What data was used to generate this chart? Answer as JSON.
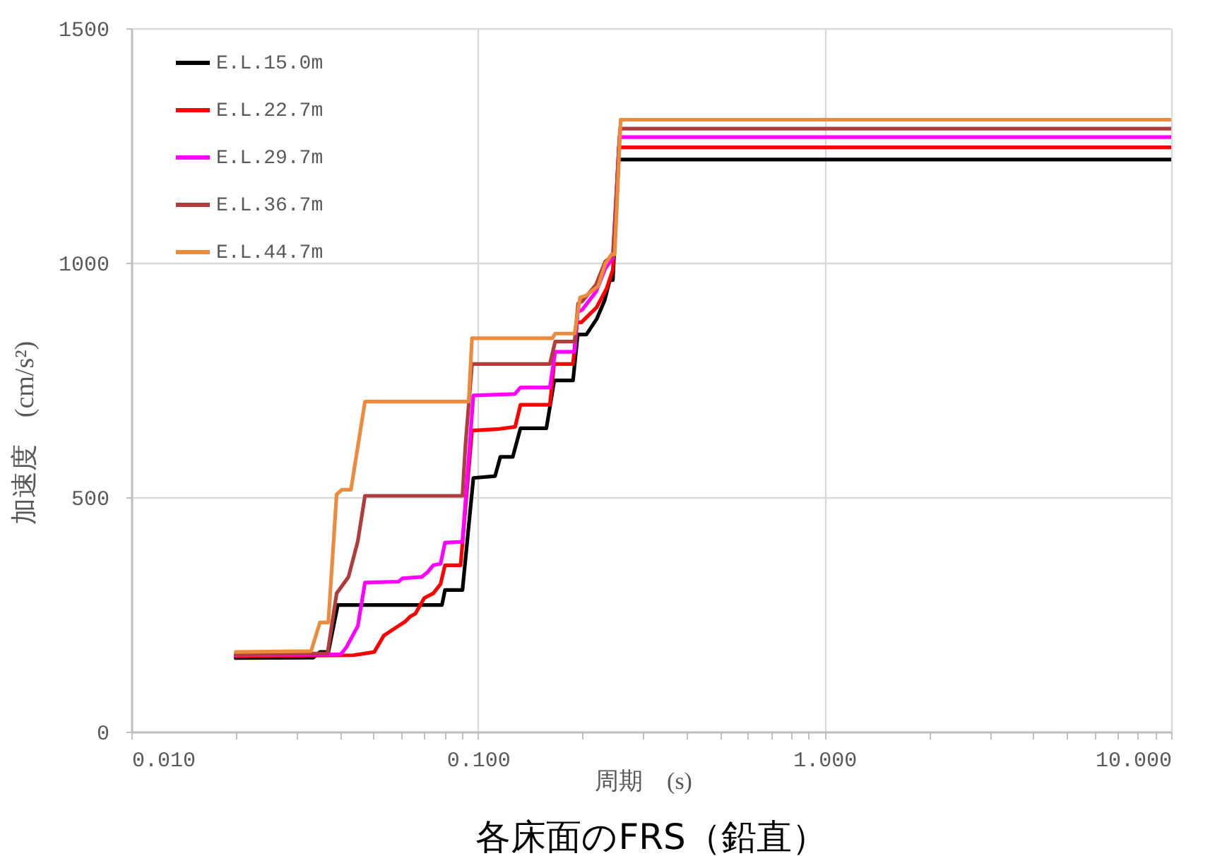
{
  "chart_data": {
    "type": "line",
    "title": "各床面のFRS（鉛直）",
    "xlabel": "周期　(s)",
    "ylabel": "加速度　(cm/s²)",
    "log": "x",
    "grid": true,
    "legend": "top left",
    "line_style": "solid",
    "xlim": [
      0.01,
      10
    ],
    "ylim": [
      0,
      1500
    ],
    "xticks": [
      {
        "value": 0.01,
        "label": "0.010"
      },
      {
        "value": 0.02,
        "label": null
      },
      {
        "value": 0.03,
        "label": null
      },
      {
        "value": 0.04,
        "label": null
      },
      {
        "value": 0.05,
        "label": null
      },
      {
        "value": 0.06,
        "label": null
      },
      {
        "value": 0.07,
        "label": null
      },
      {
        "value": 0.08,
        "label": null
      },
      {
        "value": 0.09,
        "label": null
      },
      {
        "value": 0.1,
        "label": "0.100"
      },
      {
        "value": 0.2,
        "label": null
      },
      {
        "value": 0.3,
        "label": null
      },
      {
        "value": 0.4,
        "label": null
      },
      {
        "value": 0.5,
        "label": null
      },
      {
        "value": 0.6,
        "label": null
      },
      {
        "value": 0.7,
        "label": null
      },
      {
        "value": 0.8,
        "label": null
      },
      {
        "value": 0.9,
        "label": null
      },
      {
        "value": 1,
        "label": "1.000"
      },
      {
        "value": 2,
        "label": null
      },
      {
        "value": 3,
        "label": null
      },
      {
        "value": 4,
        "label": null
      },
      {
        "value": 5,
        "label": null
      },
      {
        "value": 6,
        "label": null
      },
      {
        "value": 7,
        "label": null
      },
      {
        "value": 8,
        "label": null
      },
      {
        "value": 9,
        "label": null
      },
      {
        "value": 10,
        "label": "10.000"
      }
    ],
    "yticks": [
      0,
      500,
      1000,
      1500
    ],
    "series": [
      {
        "name": "E.L.15.0m",
        "color": "#000000",
        "x": [
          0.02,
          0.0335,
          0.035,
          0.037,
          0.0394,
          0.0787,
          0.0803,
          0.0902,
          0.097,
          0.112,
          0.116,
          0.126,
          0.1326,
          0.1575,
          0.166,
          0.188,
          0.194,
          0.2055,
          0.22,
          0.232,
          0.24,
          0.245,
          0.2545,
          10
        ],
        "values": [
          157,
          158,
          170,
          170,
          270,
          270,
          302,
          302,
          541,
          545,
          586,
          586,
          647,
          647,
          749,
          749,
          847,
          847,
          880,
          920,
          963,
          963,
          1220,
          1220
        ]
      },
      {
        "name": "E.L.22.7m",
        "color": "#ff0000",
        "x": [
          0.02,
          0.0437,
          0.0502,
          0.0535,
          0.0588,
          0.0617,
          0.0636,
          0.066,
          0.07,
          0.0743,
          0.078,
          0.0803,
          0.0891,
          0.0961,
          0.1135,
          0.128,
          0.1326,
          0.1612,
          0.1658,
          0.188,
          0.193,
          0.1988,
          0.22,
          0.235,
          0.245,
          0.255,
          10
        ],
        "values": [
          161,
          163,
          170,
          205,
          225,
          235,
          245,
          252,
          285,
          295,
          315,
          355,
          355,
          642,
          645,
          650,
          697,
          697,
          784,
          784,
          873,
          873,
          905,
          945,
          985,
          1246,
          1246
        ]
      },
      {
        "name": "E.L.29.7m",
        "color": "#ff00ff",
        "x": [
          0.02,
          0.0402,
          0.0417,
          0.045,
          0.0472,
          0.059,
          0.0605,
          0.0688,
          0.0715,
          0.0743,
          0.078,
          0.0803,
          0.0902,
          0.097,
          0.1277,
          0.1326,
          0.1612,
          0.167,
          0.19,
          0.194,
          0.2,
          0.219,
          0.233,
          0.245,
          0.256,
          10
        ],
        "values": [
          163,
          165,
          180,
          225,
          318,
          320,
          327,
          330,
          340,
          355,
          358,
          403,
          405,
          717,
          720,
          734,
          734,
          810,
          810,
          895,
          900,
          938,
          988,
          1010,
          1268,
          1268
        ]
      },
      {
        "name": "E.L.36.7m",
        "color": "#b03c3c",
        "x": [
          0.02,
          0.0368,
          0.0391,
          0.0423,
          0.045,
          0.0472,
          0.0902,
          0.092,
          0.0961,
          0.1612,
          0.167,
          0.19,
          0.1945,
          0.2,
          0.219,
          0.233,
          0.245,
          0.257,
          10
        ],
        "values": [
          165,
          167,
          295,
          330,
          406,
          503,
          503,
          611,
          784,
          784,
          832,
          832,
          913,
          918,
          953,
          1003,
          1015,
          1286,
          1286
        ]
      },
      {
        "name": "E.L.44.7m",
        "color": "#ed8b3c",
        "x": [
          0.02,
          0.033,
          0.035,
          0.037,
          0.0391,
          0.0405,
          0.043,
          0.0472,
          0.094,
          0.0961,
          0.164,
          0.167,
          0.19,
          0.197,
          0.205,
          0.222,
          0.233,
          0.243,
          0.248,
          0.258,
          10
        ],
        "values": [
          170,
          172,
          233,
          233,
          506,
          516,
          516,
          704,
          704,
          839,
          839,
          849,
          849,
          926,
          930,
          950,
          998,
          1018,
          1018,
          1305,
          1305
        ]
      }
    ]
  }
}
